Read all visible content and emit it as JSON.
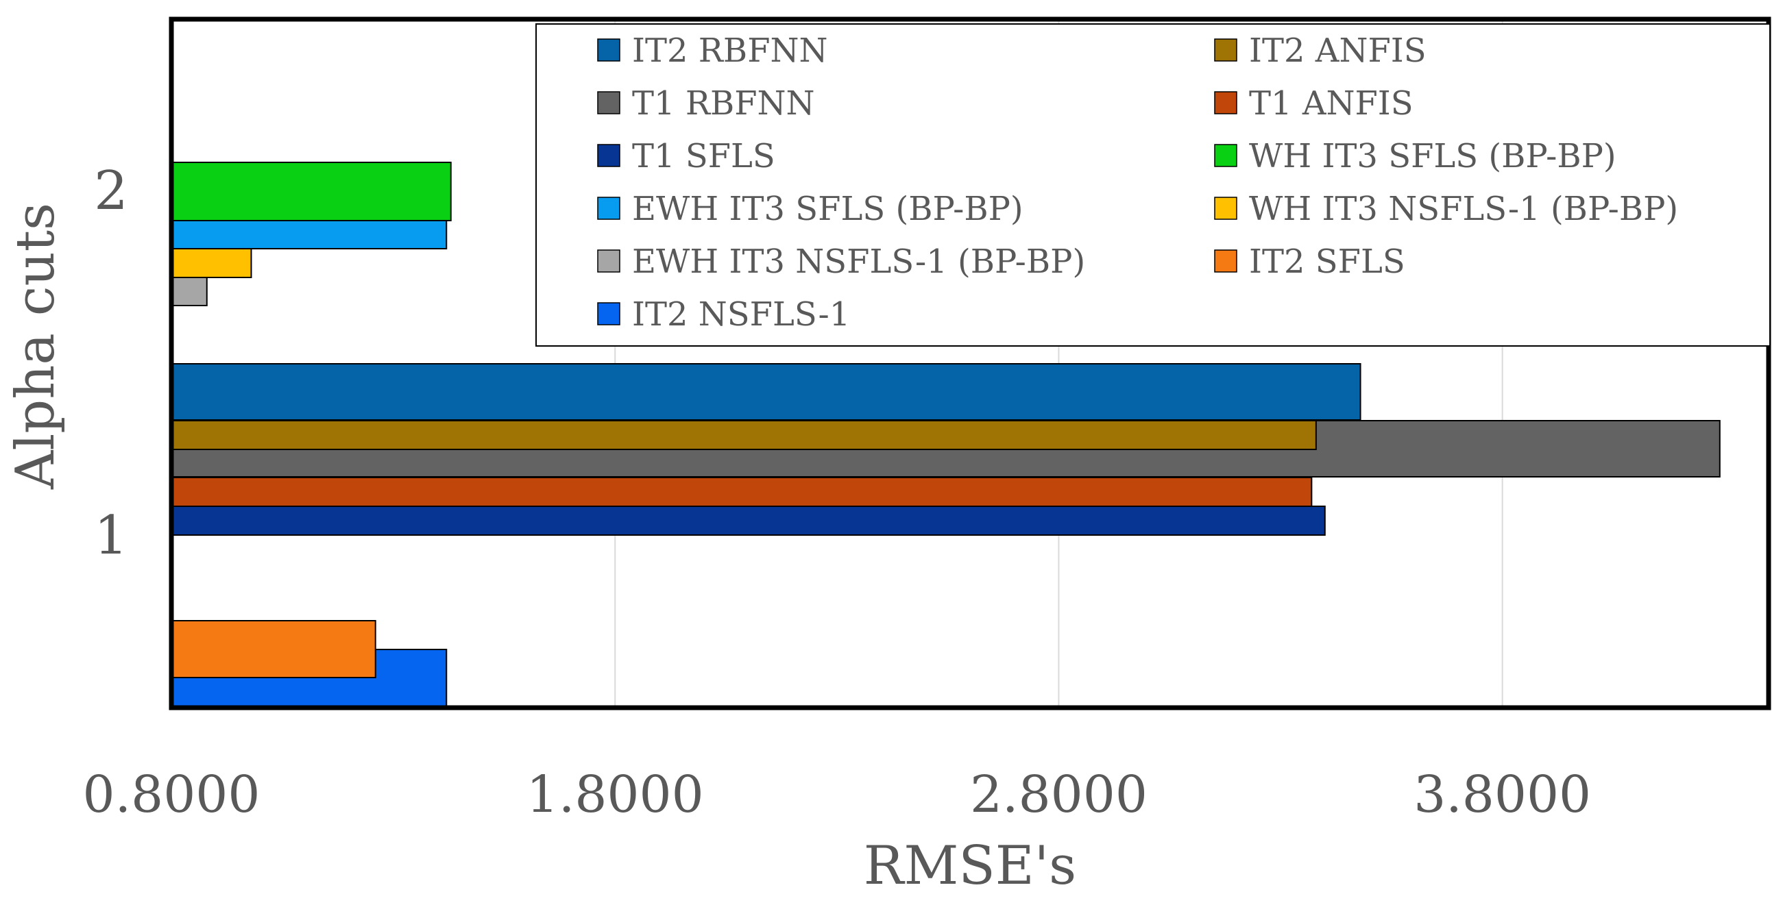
{
  "chart_data": {
    "type": "bar",
    "orientation": "horizontal",
    "title": "",
    "xlabel": "RMSE's",
    "ylabel": "Alpha cuts",
    "xlim": [
      0.8,
      4.4
    ],
    "xticks": [
      "0.8000",
      "1.8000",
      "2.8000",
      "3.8000"
    ],
    "xtick_values": [
      0.8,
      1.8,
      2.8,
      3.8
    ],
    "categories": [
      "1",
      "2"
    ],
    "grid": true,
    "legend_position": "top-right",
    "series": [
      {
        "name": "IT2 RBFNN",
        "color": "#0563A8",
        "values": [
          3.48,
          null
        ]
      },
      {
        "name": "IT2 ANFIS",
        "color": "#A07305",
        "values": [
          3.38,
          null
        ]
      },
      {
        "name": "T1 RBFNN",
        "color": "#636363",
        "values": [
          4.29,
          null
        ]
      },
      {
        "name": "T1 ANFIS",
        "color": "#C0460A",
        "values": [
          3.37,
          null
        ]
      },
      {
        "name": "T1 SFLS",
        "color": "#063594",
        "values": [
          3.4,
          null
        ]
      },
      {
        "name": "WH IT3 SFLS (BP-BP)",
        "color": "#0AD014",
        "values": [
          null,
          1.43
        ]
      },
      {
        "name": "EWH IT3 SFLS (BP-BP)",
        "color": "#079CF0",
        "values": [
          null,
          1.42
        ]
      },
      {
        "name": "WH IT3 NSFLS-1 (BP-BP)",
        "color": "#FFC000",
        "values": [
          null,
          0.98
        ]
      },
      {
        "name": "EWH IT3 NSFLS-1 (BP-BP)",
        "color": "#A6A6A6",
        "values": [
          null,
          0.88
        ]
      },
      {
        "name": "IT2 SFLS",
        "color": "#F57A14",
        "values": [
          1.26,
          null
        ]
      },
      {
        "name": "IT2 NSFLS-1",
        "color": "#0565F0",
        "values": [
          1.42,
          null
        ]
      }
    ]
  }
}
